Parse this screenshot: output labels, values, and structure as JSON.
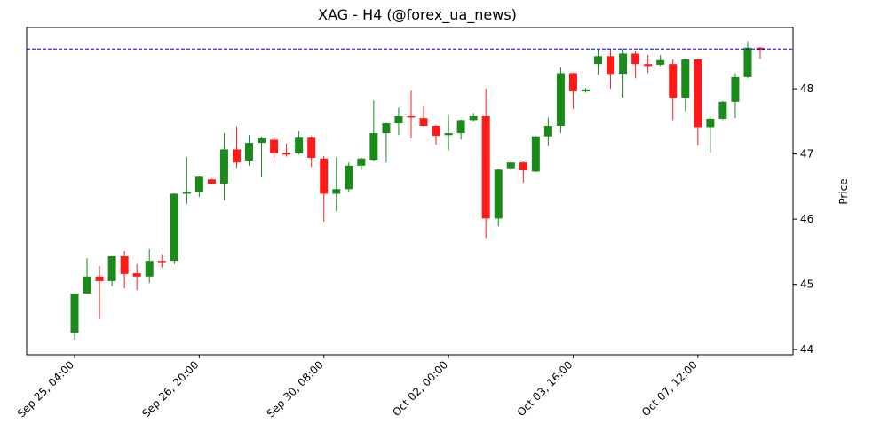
{
  "chart_data": {
    "type": "candlestick",
    "title": "XAG - H4 (@forex_ua_news)",
    "y_label": "Price",
    "categories": [
      "Sep 25, 04:00",
      null,
      null,
      null,
      null,
      null,
      null,
      null,
      null,
      null,
      "Sep 26, 20:00",
      null,
      null,
      null,
      null,
      null,
      null,
      null,
      null,
      null,
      "Sep 30, 08:00",
      null,
      null,
      null,
      null,
      null,
      null,
      null,
      null,
      null,
      "Oct 02, 00:00",
      null,
      null,
      null,
      null,
      null,
      null,
      null,
      null,
      null,
      "Oct 03, 16:00",
      null,
      null,
      null,
      null,
      null,
      null,
      null,
      null,
      null,
      "Oct 07, 12:00",
      null,
      null,
      null,
      null,
      null
    ],
    "open": [
      44.26,
      44.86,
      45.12,
      45.05,
      45.43,
      45.17,
      45.12,
      45.36,
      45.36,
      46.39,
      46.42,
      46.61,
      46.54,
      47.07,
      46.9,
      47.17,
      47.22,
      47.02,
      47.01,
      47.25,
      46.93,
      46.39,
      46.46,
      46.82,
      46.91,
      47.32,
      47.47,
      47.58,
      47.55,
      47.43,
      47.29,
      47.32,
      47.52,
      47.58,
      46.01,
      46.78,
      46.87,
      46.73,
      47.27,
      47.43,
      48.24,
      47.96,
      48.38,
      48.5,
      48.23,
      48.54,
      48.38,
      48.37,
      48.38,
      47.86,
      48.45,
      47.41,
      47.54,
      47.8,
      48.18,
      48.63
    ],
    "high": [
      44.86,
      45.4,
      45.28,
      45.43,
      45.51,
      45.31,
      45.54,
      45.46,
      46.4,
      46.95,
      46.66,
      46.62,
      47.32,
      47.42,
      47.29,
      47.26,
      47.25,
      47.16,
      47.35,
      47.27,
      46.97,
      46.95,
      46.87,
      46.95,
      47.82,
      47.48,
      47.71,
      47.97,
      47.73,
      47.44,
      47.59,
      47.53,
      47.63,
      48.0,
      46.77,
      46.88,
      46.89,
      47.28,
      47.56,
      48.33,
      48.25,
      48.01,
      48.61,
      48.61,
      48.61,
      48.58,
      48.52,
      48.52,
      48.45,
      48.46,
      48.46,
      47.56,
      47.81,
      48.24,
      48.73,
      48.64
    ],
    "low": [
      44.15,
      44.86,
      44.46,
      44.97,
      44.94,
      44.91,
      45.02,
      45.25,
      45.31,
      46.23,
      46.34,
      46.53,
      46.29,
      46.79,
      46.82,
      46.64,
      46.88,
      46.96,
      46.99,
      46.8,
      45.96,
      46.12,
      46.42,
      46.75,
      46.89,
      46.87,
      47.29,
      47.24,
      47.42,
      47.14,
      47.05,
      47.22,
      47.5,
      45.71,
      45.89,
      46.75,
      46.56,
      46.72,
      47.12,
      47.32,
      47.69,
      47.94,
      48.22,
      48.0,
      47.86,
      48.16,
      48.24,
      48.35,
      47.52,
      47.65,
      47.13,
      47.02,
      47.52,
      47.55,
      48.16,
      48.46
    ],
    "close": [
      44.86,
      45.12,
      45.05,
      45.43,
      45.16,
      45.12,
      45.36,
      45.34,
      46.39,
      46.42,
      46.65,
      46.54,
      47.07,
      46.87,
      47.17,
      47.24,
      47.01,
      46.99,
      47.25,
      46.94,
      46.39,
      46.46,
      46.82,
      46.93,
      47.32,
      47.47,
      47.58,
      47.56,
      47.43,
      47.28,
      47.32,
      47.52,
      47.58,
      46.01,
      46.76,
      46.87,
      46.75,
      47.27,
      47.43,
      48.24,
      47.96,
      47.99,
      48.5,
      48.23,
      48.54,
      48.38,
      48.35,
      48.44,
      47.86,
      48.45,
      47.41,
      47.54,
      47.8,
      48.18,
      48.63,
      48.6
    ],
    "up_color": "#1a8a1a",
    "down_color": "#ff1a1a",
    "hline": {
      "value": 48.61,
      "color": "#0000ff"
    },
    "ylim": [
      43.92,
      48.94
    ],
    "yticks": [
      44,
      45,
      46,
      47,
      48
    ],
    "y_axis_side": "right"
  }
}
